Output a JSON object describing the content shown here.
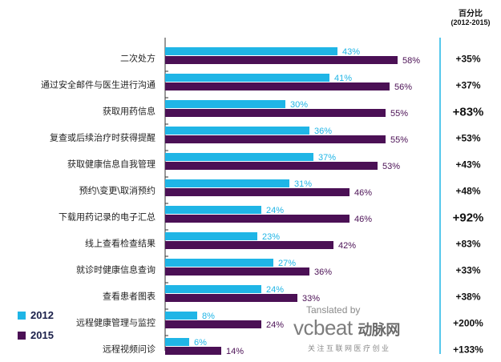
{
  "header": {
    "line1": "百分比",
    "line2": "(2012-2015)"
  },
  "colors": {
    "y2012": "#1FB5E6",
    "y2015": "#4B1055",
    "highlight": "#1FB5E6",
    "divider": "#1FB5E6",
    "axis": "#333333"
  },
  "legend": [
    {
      "label": "2012",
      "color": "#1FB5E6"
    },
    {
      "label": "2015",
      "color": "#4B1055"
    }
  ],
  "watermark": {
    "translated_by": "Tanslated by",
    "brand_latin": "vcbeat",
    "brand_cn": "动脉网",
    "tagline": "关 注 互 联 网 医 疗 创 业"
  },
  "chart_data": {
    "type": "bar",
    "orientation": "horizontal",
    "categories": [
      "二次处方",
      "通过安全邮件与医生进行沟通",
      "获取用药信息",
      "复查或后续治疗时获得提醒",
      "获取健康信息自我管理",
      "预约\\变更\\取消预约",
      "下载用药记录的电子汇总",
      "线上查看检查结果",
      "就诊时健康信息查询",
      "查看患者图表",
      "远程健康管理与监控",
      "远程视频问诊"
    ],
    "series": [
      {
        "name": "2012",
        "values": [
          43,
          41,
          30,
          36,
          37,
          31,
          24,
          23,
          27,
          24,
          8,
          6
        ],
        "labels": [
          "43%",
          "41%",
          "30%",
          "36%",
          "37%",
          "31%",
          "24%",
          "23%",
          "27%",
          "24%",
          "8%",
          "6%"
        ]
      },
      {
        "name": "2015",
        "values": [
          58,
          56,
          55,
          55,
          53,
          46,
          46,
          42,
          36,
          33,
          24,
          14
        ],
        "labels": [
          "58%",
          "56%",
          "55%",
          "55%",
          "53%",
          "46%",
          "46%",
          "42%",
          "36%",
          "33%",
          "24%",
          "14%"
        ]
      }
    ],
    "change": [
      "+35%",
      "+37%",
      "+83%",
      "+53%",
      "+43%",
      "+48%",
      "+92%",
      "+83%",
      "+33%",
      "+38%",
      "+200%",
      "+133%"
    ],
    "change_highlight": [
      false,
      false,
      true,
      false,
      false,
      false,
      true,
      false,
      false,
      false,
      false,
      false
    ],
    "xlim": [
      0,
      60
    ]
  }
}
